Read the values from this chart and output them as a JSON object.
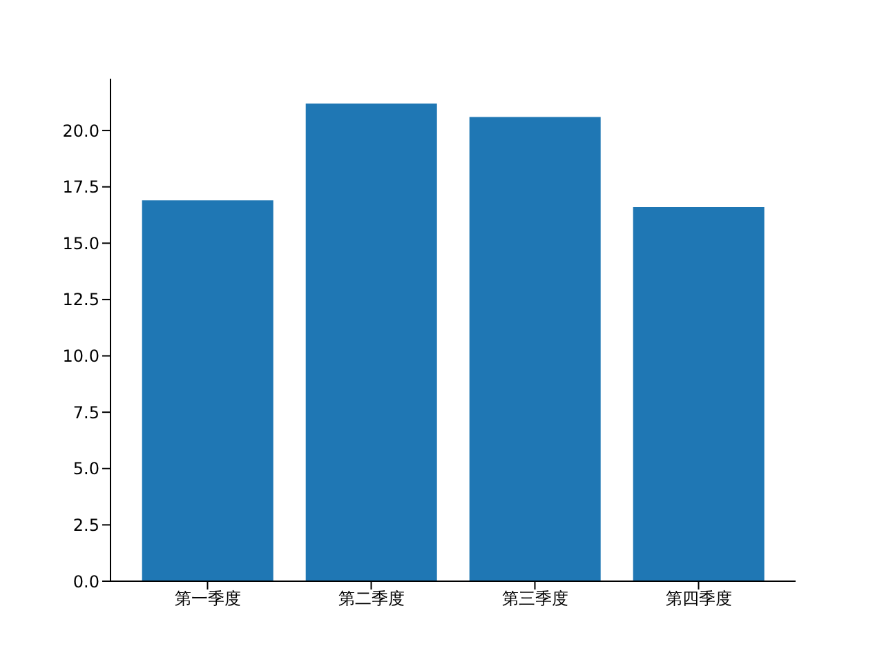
{
  "chart_data": {
    "type": "bar",
    "categories": [
      "第一季度",
      "第二季度",
      "第三季度",
      "第四季度"
    ],
    "values": [
      16.9,
      21.2,
      20.6,
      16.6
    ],
    "color": "#1f77b4",
    "ylim": [
      0,
      22.3
    ],
    "yticks": [
      {
        "value": 0,
        "label": "0.0"
      },
      {
        "value": 2.5,
        "label": "2.5"
      },
      {
        "value": 5,
        "label": "5.0"
      },
      {
        "value": 7.5,
        "label": "7.5"
      },
      {
        "value": 10,
        "label": "10.0"
      },
      {
        "value": 12.5,
        "label": "12.5"
      },
      {
        "value": 15,
        "label": "15.0"
      },
      {
        "value": 17.5,
        "label": "17.5"
      },
      {
        "value": 20,
        "label": "20.0"
      }
    ],
    "grid": false,
    "legend": false
  }
}
